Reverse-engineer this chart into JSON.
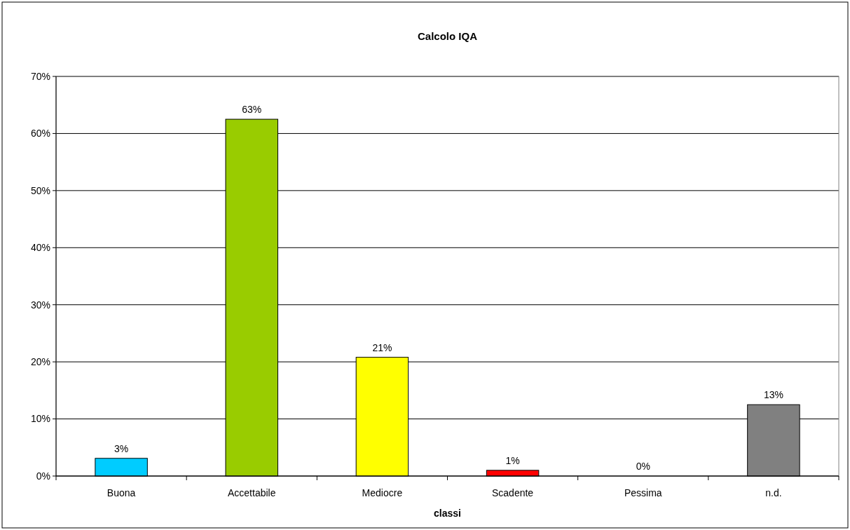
{
  "chart_data": {
    "type": "bar",
    "title": "Calcolo IQA",
    "xlabel": "classi",
    "categories": [
      "Buona",
      "Accettabile",
      "Mediocre",
      "Scadente",
      "Pessima",
      "n.d."
    ],
    "values": [
      3.1,
      62.5,
      20.8,
      1.0,
      0,
      12.5
    ],
    "colors": [
      "#00ccff",
      "#99cc00",
      "#ffff00",
      "#ff0000",
      "#993366",
      "#808080"
    ],
    "value_labels": [
      "3%",
      "63%",
      "21%",
      "1%",
      "0%",
      "13%"
    ],
    "ylim": [
      0,
      70
    ],
    "yticks": [
      {
        "value": 0,
        "label": "0%"
      },
      {
        "value": 10,
        "label": "10%"
      },
      {
        "value": 20,
        "label": "20%"
      },
      {
        "value": 30,
        "label": "30%"
      },
      {
        "value": 40,
        "label": "40%"
      },
      {
        "value": 50,
        "label": "50%"
      },
      {
        "value": 60,
        "label": "60%"
      },
      {
        "value": 70,
        "label": "70%"
      }
    ],
    "grid": "y"
  }
}
